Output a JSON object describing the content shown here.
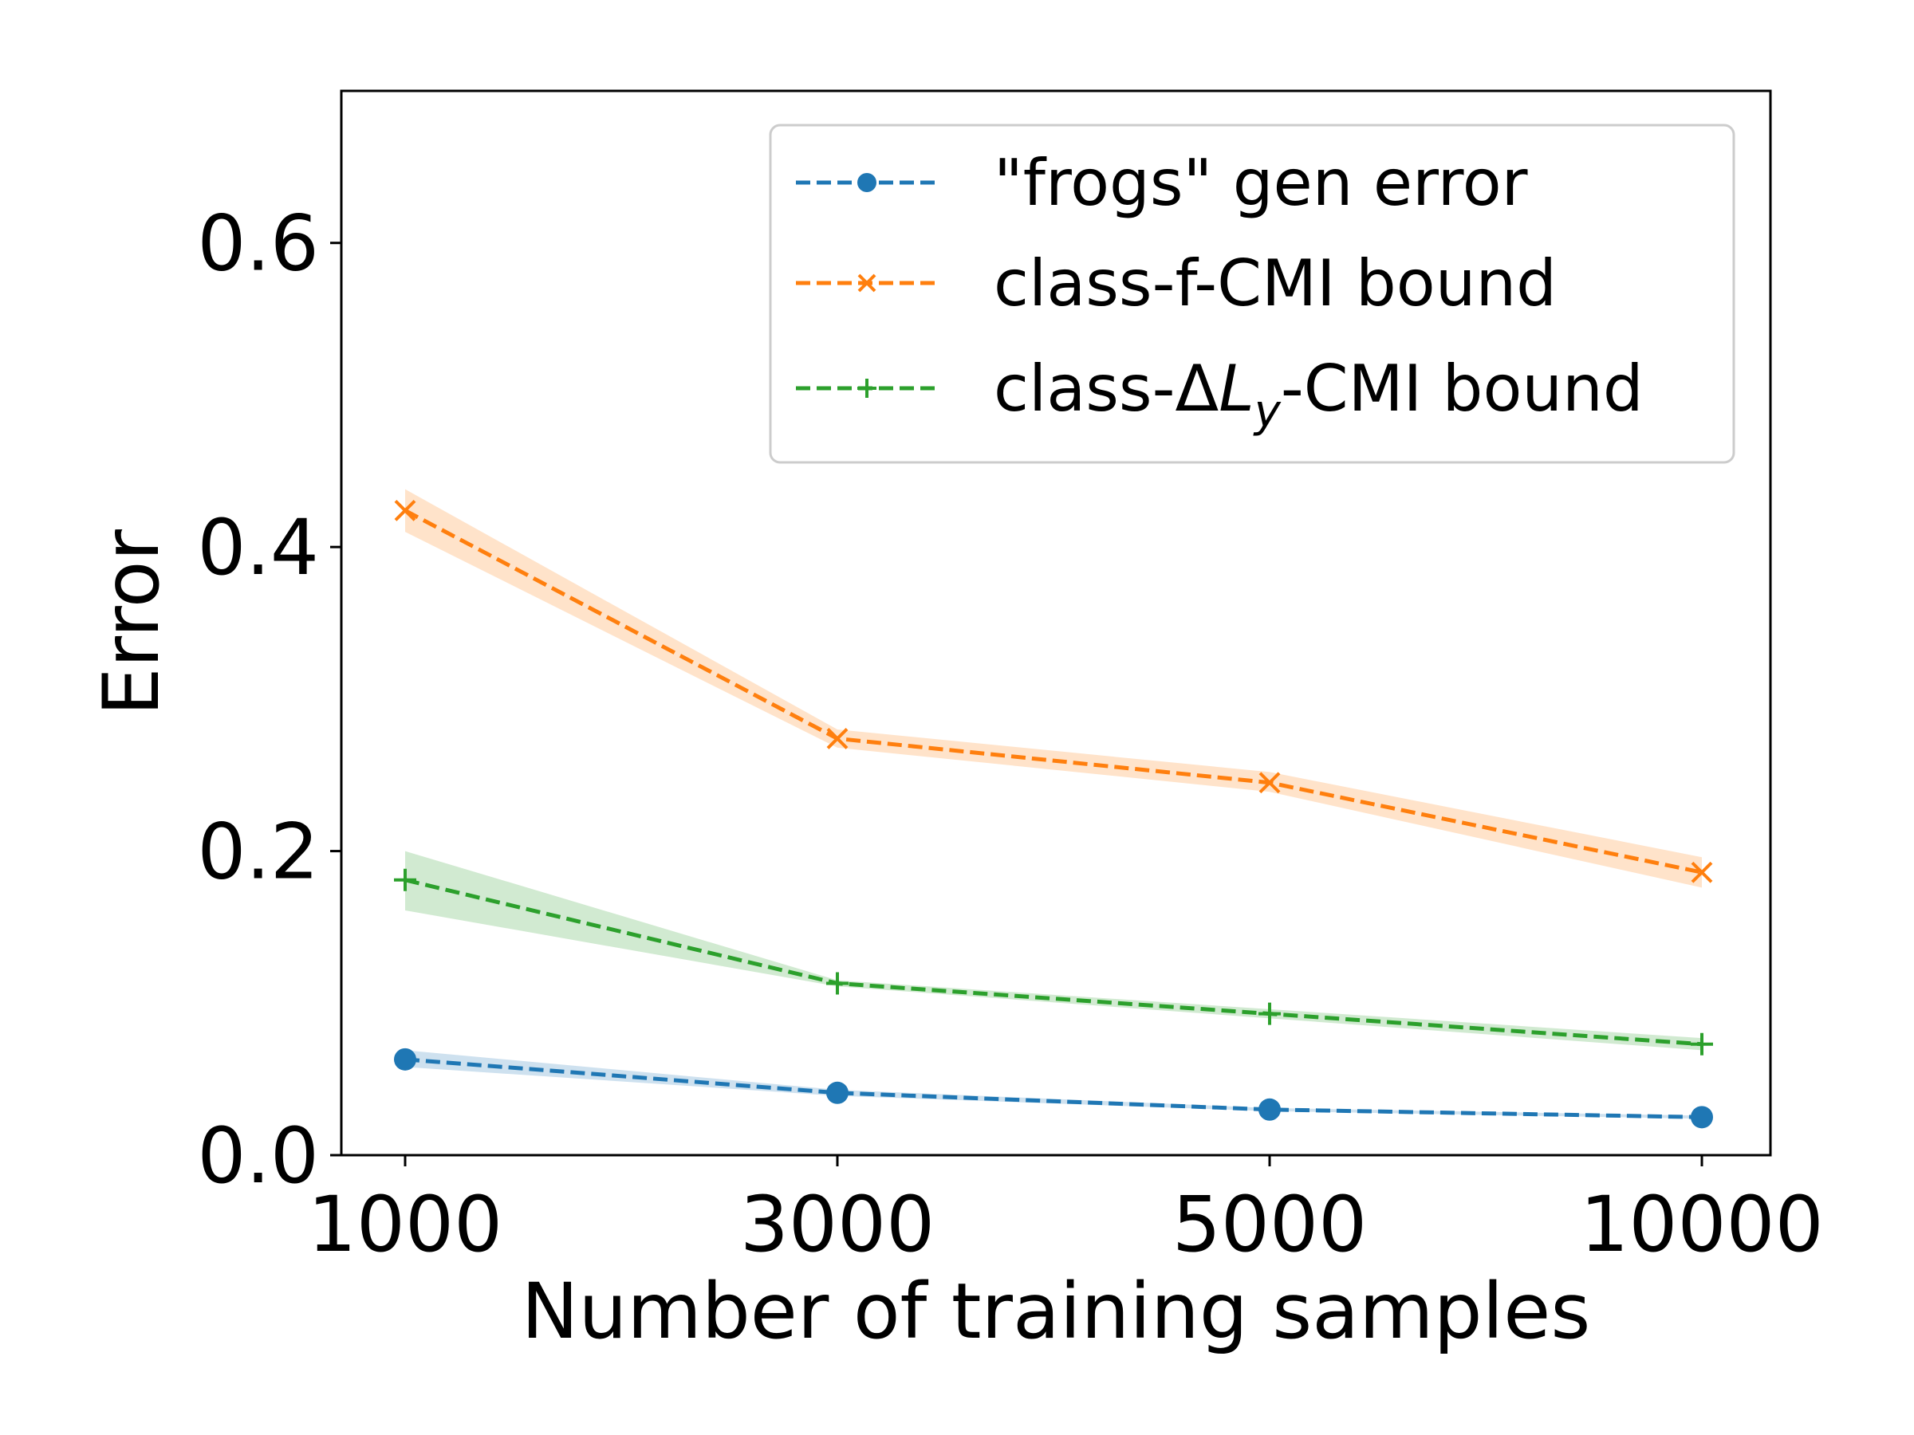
{
  "chart_data": {
    "type": "line",
    "title": "",
    "xlabel": "Number of training samples",
    "ylabel": "Error",
    "categories": [
      "1000",
      "3000",
      "5000",
      "10000"
    ],
    "ylim": [
      0.0,
      0.7
    ],
    "yticks": [
      "0.0",
      "0.2",
      "0.4",
      "0.6"
    ],
    "yticks_values": [
      0.0,
      0.2,
      0.4,
      0.6
    ],
    "grid": false,
    "legend_position": "top-right",
    "series": [
      {
        "name": "\"frogs\" gen error",
        "color": "#1f77b4",
        "marker": "circle",
        "values": [
          0.063,
          0.041,
          0.03,
          0.025
        ],
        "lower": [
          0.058,
          0.039,
          0.029,
          0.024
        ],
        "upper": [
          0.069,
          0.043,
          0.031,
          0.026
        ]
      },
      {
        "name": "class-f-CMI bound",
        "color": "#ff7f0e",
        "marker": "x",
        "values": [
          0.424,
          0.274,
          0.245,
          0.186
        ],
        "lower": [
          0.41,
          0.268,
          0.239,
          0.176
        ],
        "upper": [
          0.438,
          0.28,
          0.252,
          0.196
        ]
      },
      {
        "name": "class-ΔLy-CMI bound",
        "color": "#2ca02c",
        "marker": "plus",
        "values": [
          0.181,
          0.113,
          0.093,
          0.073
        ],
        "lower": [
          0.161,
          0.111,
          0.09,
          0.069
        ],
        "upper": [
          0.2,
          0.115,
          0.096,
          0.077
        ]
      }
    ]
  },
  "legend": {
    "series0_label": "\"frogs\" gen error",
    "series1_label": "class-f-CMI bound",
    "series2_label_prefix": "class-Δ",
    "series2_label_L": "L",
    "series2_label_sub": "y",
    "series2_label_suffix": "-CMI bound"
  }
}
